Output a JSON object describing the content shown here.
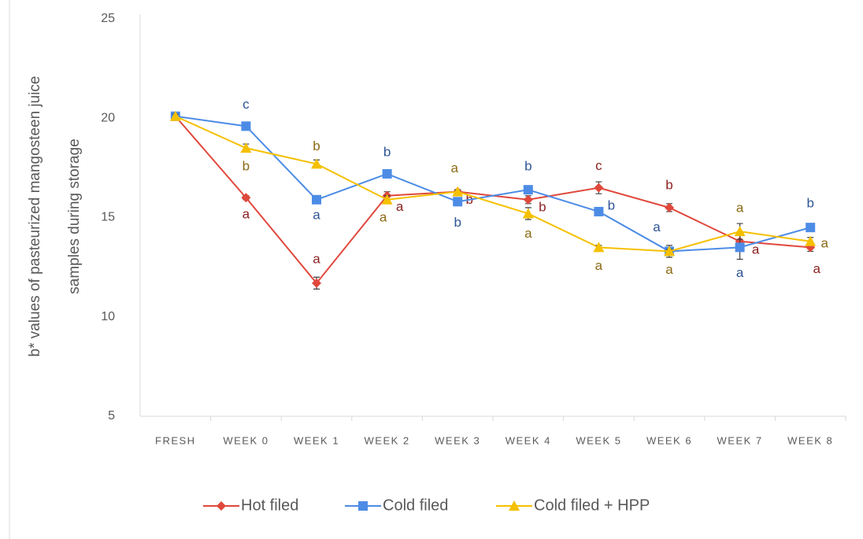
{
  "chart_data": {
    "type": "line",
    "y_label": [
      "b* values of pasteurized mangosteen juice",
      "samples during storage"
    ],
    "categories": [
      "FRESH",
      "WEEK 0",
      "WEEK 1",
      "WEEK 2",
      "WEEK 3",
      "WEEK 4",
      "WEEK 5",
      "WEEK 6",
      "WEEK 7",
      "WEEK 8"
    ],
    "series": [
      {
        "name": "Hot filed",
        "color": "#e0483c",
        "letter_color": "#8b1f1f",
        "marker": "diamond",
        "values": [
          20.1,
          16.0,
          11.7,
          16.1,
          16.3,
          15.9,
          16.5,
          15.5,
          13.8,
          13.5
        ],
        "errors": [
          0.1,
          0.1,
          0.3,
          0.2,
          0.1,
          0.2,
          0.3,
          0.2,
          0.3,
          0.2
        ],
        "letters": [
          null,
          "a",
          "a",
          "a",
          "b",
          "b",
          "c",
          "b",
          "a",
          "a"
        ]
      },
      {
        "name": "Cold filed",
        "color": "#4d8ce6",
        "letter_color": "#2f5496",
        "marker": "square",
        "values": [
          20.1,
          19.6,
          15.9,
          17.2,
          15.8,
          16.4,
          15.3,
          13.3,
          13.5,
          14.5
        ],
        "errors": [
          0.1,
          0.1,
          0.1,
          0.1,
          0.1,
          0.1,
          0.1,
          0.3,
          0.6,
          0.1
        ],
        "letters": [
          null,
          "c",
          "a",
          "b",
          "b",
          "b",
          "b",
          "a",
          "a",
          "b"
        ]
      },
      {
        "name": "Cold filed + HPP",
        "color": "#f5c000",
        "letter_color": "#8b6a14",
        "marker": "triangle",
        "values": [
          20.1,
          18.5,
          17.7,
          15.9,
          16.3,
          15.2,
          13.5,
          13.3,
          14.3,
          13.8
        ],
        "errors": [
          0.1,
          0.2,
          0.2,
          0.2,
          0.1,
          0.3,
          0.1,
          0.1,
          0.4,
          0.2
        ],
        "letters": [
          null,
          "b",
          "b",
          "a",
          "a",
          "a",
          "a",
          "a",
          "a",
          "a"
        ]
      }
    ],
    "ylim": [
      5,
      25
    ],
    "yticks": [
      5,
      10,
      15,
      20,
      25
    ],
    "grid": false,
    "legend": "bottom"
  }
}
